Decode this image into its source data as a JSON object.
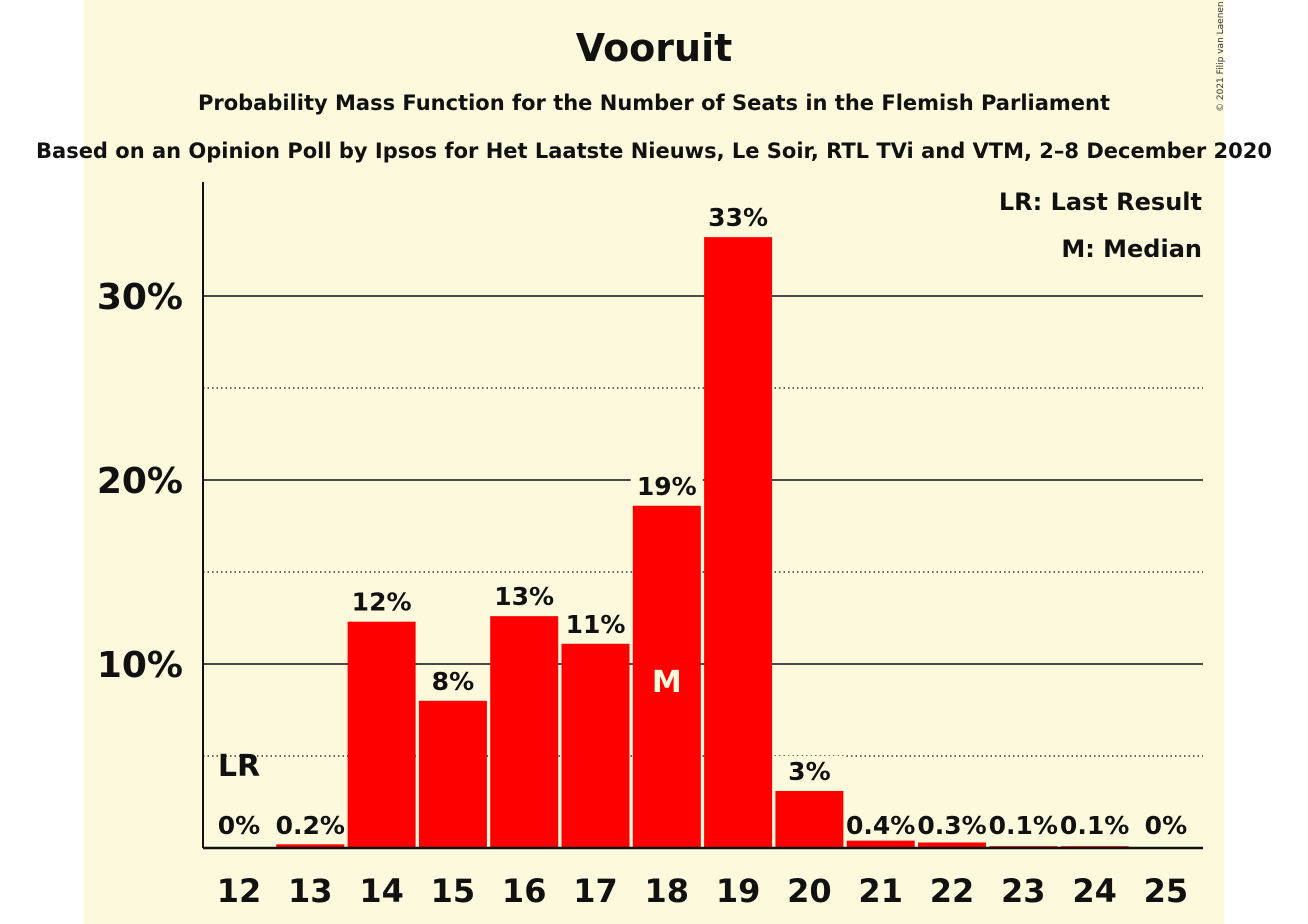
{
  "colors": {
    "bar": "#ff0000",
    "background": "#fdf9dd"
  },
  "chart_data": {
    "type": "bar",
    "title": "Vooruit",
    "subtitle": "Probability Mass Function for the Number of Seats in the Flemish Parliament",
    "subtitle2": "Based on an Opinion Poll by Ipsos for Het Laatste Nieuws, Le Soir, RTL TVi and VTM, 2–8 December 2020",
    "copyright": "© 2021 Filip van Laenen",
    "categories": [
      "12",
      "13",
      "14",
      "15",
      "16",
      "17",
      "18",
      "19",
      "20",
      "21",
      "22",
      "23",
      "24",
      "25"
    ],
    "values": [
      0,
      0.2,
      12.3,
      8.0,
      12.6,
      11.1,
      18.6,
      33.2,
      3.1,
      0.4,
      0.3,
      0.1,
      0.1,
      0
    ],
    "data_labels": [
      "0%",
      "0.2%",
      "12%",
      "8%",
      "13%",
      "11%",
      "19%",
      "33%",
      "3%",
      "0.4%",
      "0.3%",
      "0.1%",
      "0.1%",
      "0%"
    ],
    "ylim": [
      0,
      36
    ],
    "yticks": [
      10,
      20,
      30
    ],
    "ytick_labels": [
      "10%",
      "20%",
      "30%"
    ],
    "minor_gridlines": [
      5,
      15,
      25
    ],
    "last_result": {
      "category": "12",
      "label": "LR"
    },
    "median": {
      "category": "18",
      "label": "M"
    },
    "legend": [
      "LR: Last Result",
      "M: Median"
    ],
    "legend_position": "top-right"
  }
}
